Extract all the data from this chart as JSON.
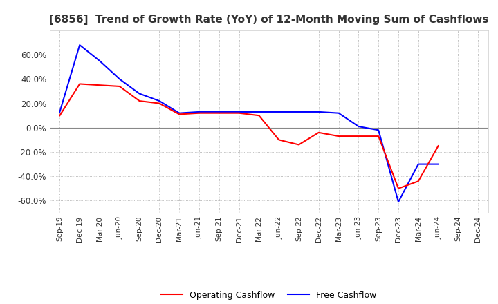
{
  "title": "[6856]  Trend of Growth Rate (YoY) of 12-Month Moving Sum of Cashflows",
  "title_fontsize": 11,
  "ylim": [
    -0.7,
    0.8
  ],
  "yticks": [
    -0.6,
    -0.4,
    -0.2,
    0.0,
    0.2,
    0.4,
    0.6
  ],
  "ytick_labels": [
    "-60.0%",
    "-40.0%",
    "-20.0%",
    "0.0%",
    "20.0%",
    "40.0%",
    "60.0%"
  ],
  "background_color": "#ffffff",
  "plot_bg_color": "#ffffff",
  "grid_color": "#aaaaaa",
  "x_labels": [
    "Sep-19",
    "Dec-19",
    "Mar-20",
    "Jun-20",
    "Sep-20",
    "Dec-20",
    "Mar-21",
    "Jun-21",
    "Sep-21",
    "Dec-21",
    "Mar-22",
    "Jun-22",
    "Sep-22",
    "Dec-22",
    "Mar-23",
    "Jun-23",
    "Sep-23",
    "Dec-23",
    "Mar-24",
    "Jun-24",
    "Sep-24",
    "Dec-24"
  ],
  "operating_cashflow": [
    0.1,
    0.36,
    0.35,
    0.34,
    0.22,
    0.2,
    0.11,
    0.12,
    0.12,
    0.12,
    0.1,
    -0.1,
    -0.14,
    -0.04,
    -0.07,
    -0.07,
    -0.07,
    -0.5,
    -0.44,
    -0.15,
    null,
    null
  ],
  "free_cashflow": [
    0.13,
    0.68,
    0.55,
    0.4,
    0.28,
    0.22,
    0.12,
    0.13,
    0.13,
    0.13,
    0.13,
    0.13,
    0.13,
    0.13,
    0.12,
    0.01,
    -0.02,
    -0.61,
    -0.3,
    -0.3,
    null,
    null
  ],
  "operating_color": "#ff0000",
  "free_color": "#0000ff",
  "line_width": 1.5,
  "legend_labels": [
    "Operating Cashflow",
    "Free Cashflow"
  ]
}
